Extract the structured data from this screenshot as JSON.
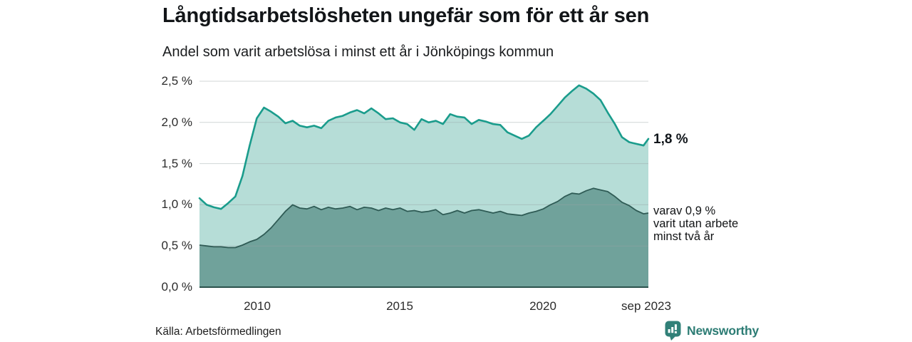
{
  "header": {
    "title": "Långtidsarbetslösheten ungefär som för ett år sen",
    "subtitle": "Andel som varit arbetslösa i minst ett år i Jönköpings kommun"
  },
  "chart_data": {
    "type": "area",
    "title": "Långtidsarbetslösheten ungefär som för ett år sen",
    "subtitle": "Andel som varit arbetslösa i minst ett år i Jönköpings kommun",
    "grid": "horizontal",
    "ylim": [
      0,
      2.5
    ],
    "yticks": [
      "2,5 %",
      "2,0 %",
      "1,5 %",
      "1,0 %",
      "0,5 %",
      "0,0 %"
    ],
    "ytick_values": [
      2.5,
      2.0,
      1.5,
      1.0,
      0.5,
      0.0
    ],
    "xticks": [
      {
        "label": "2010",
        "year": 2010
      },
      {
        "label": "2015",
        "year": 2015
      },
      {
        "label": "2020",
        "year": 2020
      },
      {
        "label": "sep 2023",
        "year": 2023.67
      }
    ],
    "x_unit": "decimal year (monthly share of population, percent)",
    "x": [
      2008.0,
      2008.25,
      2008.5,
      2008.75,
      2009.0,
      2009.25,
      2009.5,
      2009.75,
      2010.0,
      2010.25,
      2010.5,
      2010.75,
      2011.0,
      2011.25,
      2011.5,
      2011.75,
      2012.0,
      2012.25,
      2012.5,
      2012.75,
      2013.0,
      2013.25,
      2013.5,
      2013.75,
      2014.0,
      2014.25,
      2014.5,
      2014.75,
      2015.0,
      2015.25,
      2015.5,
      2015.75,
      2016.0,
      2016.25,
      2016.5,
      2016.75,
      2017.0,
      2017.25,
      2017.5,
      2017.75,
      2018.0,
      2018.25,
      2018.5,
      2018.75,
      2019.0,
      2019.25,
      2019.5,
      2019.75,
      2020.0,
      2020.25,
      2020.5,
      2020.75,
      2021.0,
      2021.25,
      2021.5,
      2021.75,
      2022.0,
      2022.25,
      2022.5,
      2022.75,
      2023.0,
      2023.25,
      2023.5,
      2023.67
    ],
    "series": [
      {
        "id": "arbetslosa-minst-ett-ar",
        "end_label": "1,8 %",
        "end_value": 1.8,
        "line_color": "#1a9c8c",
        "fill_color": "#b6ddd7",
        "values": [
          1.08,
          1.0,
          0.97,
          0.95,
          1.02,
          1.1,
          1.35,
          1.72,
          2.05,
          2.18,
          2.13,
          2.07,
          1.99,
          2.02,
          1.96,
          1.94,
          1.96,
          1.93,
          2.02,
          2.06,
          2.08,
          2.12,
          2.15,
          2.11,
          2.17,
          2.11,
          2.04,
          2.05,
          2.0,
          1.98,
          1.91,
          2.04,
          2.0,
          2.02,
          1.98,
          2.1,
          2.07,
          2.06,
          1.98,
          2.03,
          2.01,
          1.98,
          1.97,
          1.88,
          1.84,
          1.8,
          1.84,
          1.94,
          2.02,
          2.1,
          2.2,
          2.3,
          2.38,
          2.45,
          2.41,
          2.35,
          2.27,
          2.12,
          1.98,
          1.82,
          1.76,
          1.74,
          1.72,
          1.8
        ]
      },
      {
        "id": "varav-utan-arbete-minst-tva-ar",
        "end_label": "varav 0,9 % varit utan arbete minst två år",
        "end_value": 0.9,
        "line_color": "#2f5b55",
        "fill_color": "#70a29b",
        "values": [
          0.51,
          0.5,
          0.49,
          0.49,
          0.48,
          0.48,
          0.51,
          0.55,
          0.58,
          0.64,
          0.72,
          0.82,
          0.92,
          1.0,
          0.96,
          0.95,
          0.98,
          0.94,
          0.97,
          0.95,
          0.96,
          0.98,
          0.94,
          0.97,
          0.96,
          0.93,
          0.96,
          0.94,
          0.96,
          0.92,
          0.93,
          0.91,
          0.92,
          0.94,
          0.88,
          0.9,
          0.93,
          0.9,
          0.93,
          0.94,
          0.92,
          0.9,
          0.92,
          0.89,
          0.88,
          0.87,
          0.9,
          0.92,
          0.95,
          1.0,
          1.04,
          1.1,
          1.14,
          1.13,
          1.17,
          1.2,
          1.18,
          1.16,
          1.1,
          1.03,
          0.99,
          0.93,
          0.89,
          0.9
        ]
      }
    ],
    "colors": {
      "grid": "#9aa5a3",
      "axis": "#2b524c"
    }
  },
  "annotations": {
    "end_total": "1,8 %",
    "end_breakdown_lines": [
      "varav 0,9 %",
      "varit utan arbete",
      "minst två år"
    ]
  },
  "footer": {
    "source": "Källa: Arbetsförmedlingen",
    "brand_name": "Newsworthy",
    "brand_color": "#2c7c74",
    "brand_icon": "newsworthy-speech-bubble-chart-icon"
  }
}
